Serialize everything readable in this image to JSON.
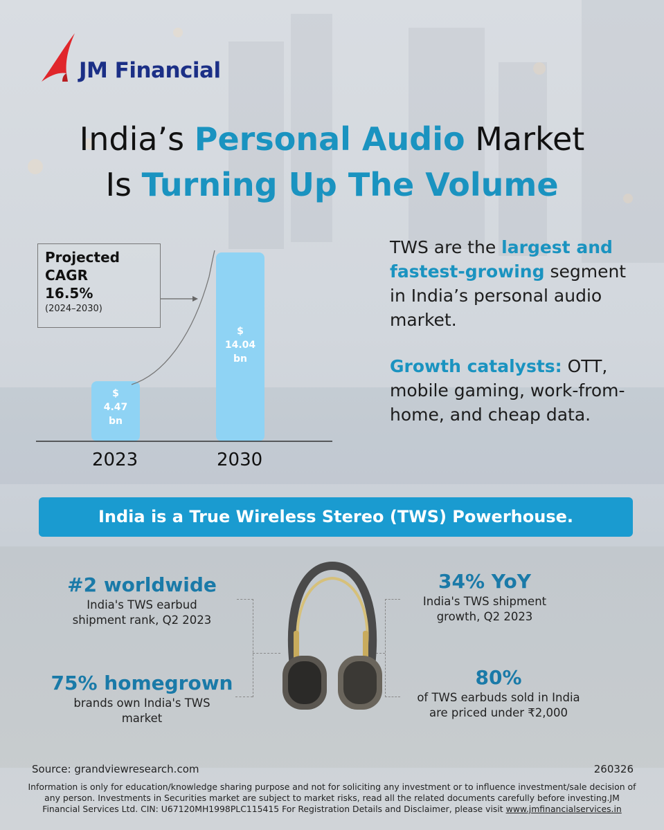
{
  "brand": {
    "name": "JM Financial",
    "accent": "#1a93c0",
    "logo_red": "#e0262b",
    "logo_blue": "#1b2f86"
  },
  "headline": {
    "line1_pre": "India’s ",
    "line1_hl": "Personal Audio",
    "line1_post": " Market",
    "line2_pre": "Is ",
    "line2_hl": "Turning Up The Volume"
  },
  "chart_data": {
    "type": "bar",
    "categories": [
      "2023",
      "2030"
    ],
    "values": [
      4.47,
      14.04
    ],
    "value_labels": [
      {
        "symbol": "$",
        "amount": "4.47",
        "unit": "bn"
      },
      {
        "symbol": "$",
        "amount": "14.04",
        "unit": "bn"
      }
    ],
    "annotation": {
      "line1": "Projected",
      "line2": "CAGR",
      "value": "16.5%",
      "period": "(2024–2030)"
    },
    "bar_color": "#8fd3f4"
  },
  "tws": {
    "p1_pre": "TWS are the ",
    "p1_hl": "largest and fastest-growing",
    "p1_post": " segment in India’s personal audio market.",
    "p2_hl": "Growth catalysts:",
    "p2_post": " OTT, mobile gaming, work-from-home, and cheap data."
  },
  "banner": {
    "text": "India is a True Wireless Stereo (TWS) Powerhouse."
  },
  "stats": {
    "rank": {
      "big": "#2 worldwide",
      "sub1": "India's TWS earbud",
      "sub2": "shipment rank, Q2 2023"
    },
    "homegrown": {
      "big": "75% homegrown",
      "sub1": "brands own India's TWS",
      "sub2": "market"
    },
    "yoy": {
      "big": "34% YoY",
      "sub1": "India's TWS shipment",
      "sub2": "growth, Q2 2023"
    },
    "priced": {
      "big": "80%",
      "sub1": "of TWS earbuds sold in India",
      "sub2": "are priced under ₹2,000"
    }
  },
  "footer": {
    "source": "Source: grandviewresearch.com",
    "code": "260326",
    "disclaimer_1": "Information is only for education/knowledge sharing purpose and not for soliciting any investment or to influence investment/sale decision of",
    "disclaimer_2": "any person. Investments in Securities market are subject to market risks, read all the related documents carefully before investing.JM",
    "disclaimer_3": "Financial Services Ltd. CIN: U67120MH1998PLC115415  For Registration Details and Disclaimer, please visit ",
    "disclaimer_url": "www.jmfinancialservices.in"
  }
}
